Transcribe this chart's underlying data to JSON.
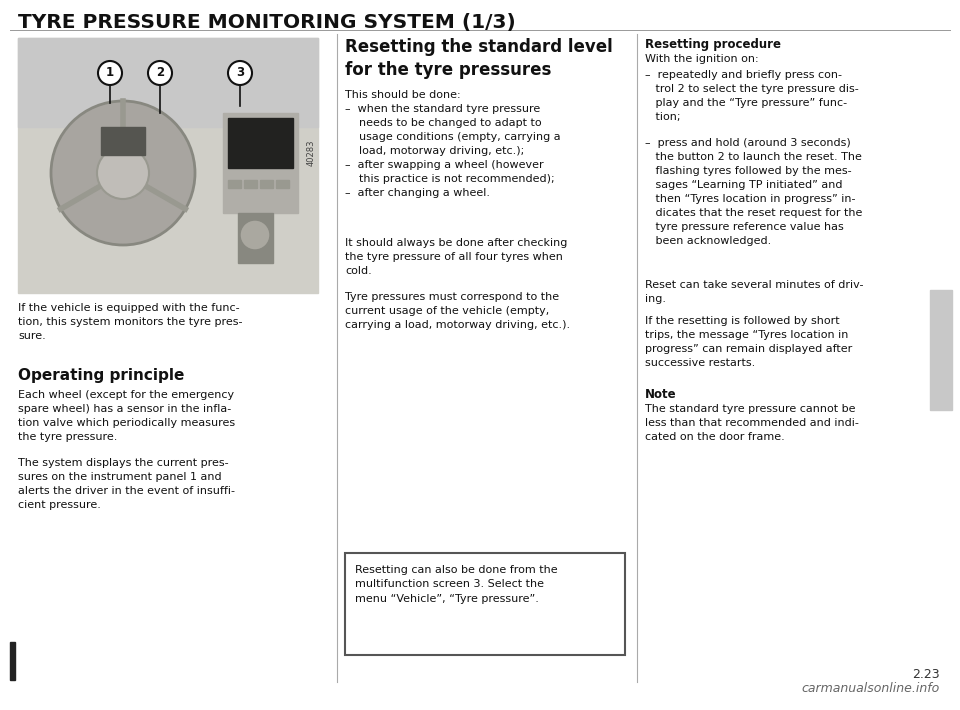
{
  "title": "TYRE PRESSURE MONITORING SYSTEM (1/3)",
  "background_color": "#ffffff",
  "page_number": "2.23",
  "watermark": "carmanualsonline.info",
  "img_label": "40283",
  "col1_caption": "If the vehicle is equipped with the func-\ntion, this system monitors the tyre pres-\nsure.",
  "col1_section_title": "Operating principle",
  "col1_body1": "Each wheel (except for the emergency\nspare wheel) has a sensor in the infla-\ntion valve which periodically measures\nthe tyre pressure.",
  "col1_body2": "The system displays the current pres-\nsures on the instrument panel 1 and\nalerts the driver in the event of insuffi-\ncient pressure.",
  "col2_heading": "Resetting the standard level\nfor the tyre pressures",
  "col2_body1": "This should be done:\n–  when the standard tyre pressure\n    needs to be changed to adapt to\n    usage conditions (empty, carrying a\n    load, motorway driving, etc.);\n–  after swapping a wheel (however\n    this practice is not recommended);\n–  after changing a wheel.",
  "col2_body2": "It should always be done after checking\nthe tyre pressure of all four tyres when\ncold.",
  "col2_body3": "Tyre pressures must correspond to the\ncurrent usage of the vehicle (empty,\ncarrying a load, motorway driving, etc.).",
  "col2_note": "Resetting can also be done from the\nmultifunction screen 3. Select the\nmenu “Vehicle”, “Tyre pressure”.",
  "col3_title": "Resetting procedure",
  "col3_body1": "With the ignition on:",
  "col3_list1": "–  repeatedly and briefly press con-\n   trol 2 to select the tyre pressure dis-\n   play and the “Tyre pressure” func-\n   tion;",
  "col3_list2": "–  press and hold (around 3 seconds)\n   the button 2 to launch the reset. The\n   flashing tyres followed by the mes-\n   sages “Learning TP initiated” and\n   then “Tyres location in progress” in-\n   dicates that the reset request for the\n   tyre pressure reference value has\n   been acknowledged.",
  "col3_body2": "Reset can take several minutes of driv-\ning.",
  "col3_body3": "If the resetting is followed by short\ntrips, the message “Tyres location in\nprogress” can remain displayed after\nsuccessive restarts.",
  "col3_note_title": "Note",
  "col3_note_body": "The standard tyre pressure cannot be\nless than that recommended and indi-\ncated on the door frame.",
  "sidebar_color": "#c8c8c8",
  "divider_color": "#aaaaaa",
  "left_bar_color": "#222222"
}
